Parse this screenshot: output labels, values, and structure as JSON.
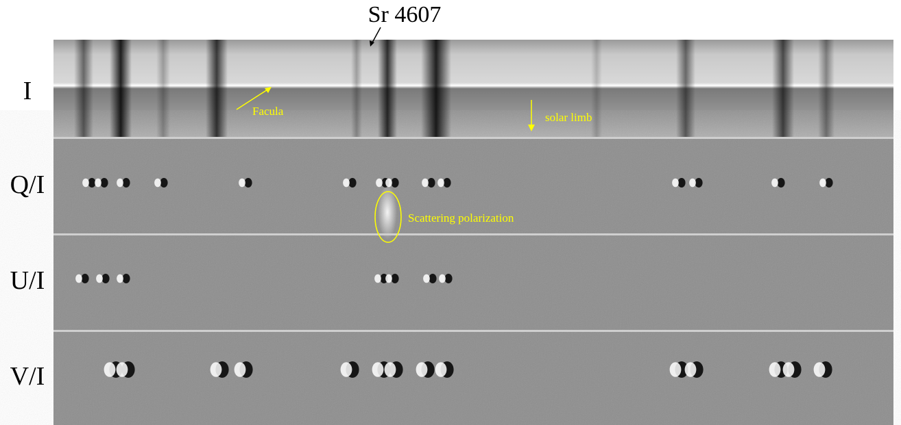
{
  "header": {
    "title": "Sr 4607"
  },
  "panels": [
    {
      "label": "I"
    },
    {
      "label": "Q/I"
    },
    {
      "label": "U/I"
    },
    {
      "label": "V/I"
    }
  ],
  "annotations": {
    "facula": "Facula",
    "solar_limb": "solar limb",
    "scattering": "Scattering polarization"
  }
}
